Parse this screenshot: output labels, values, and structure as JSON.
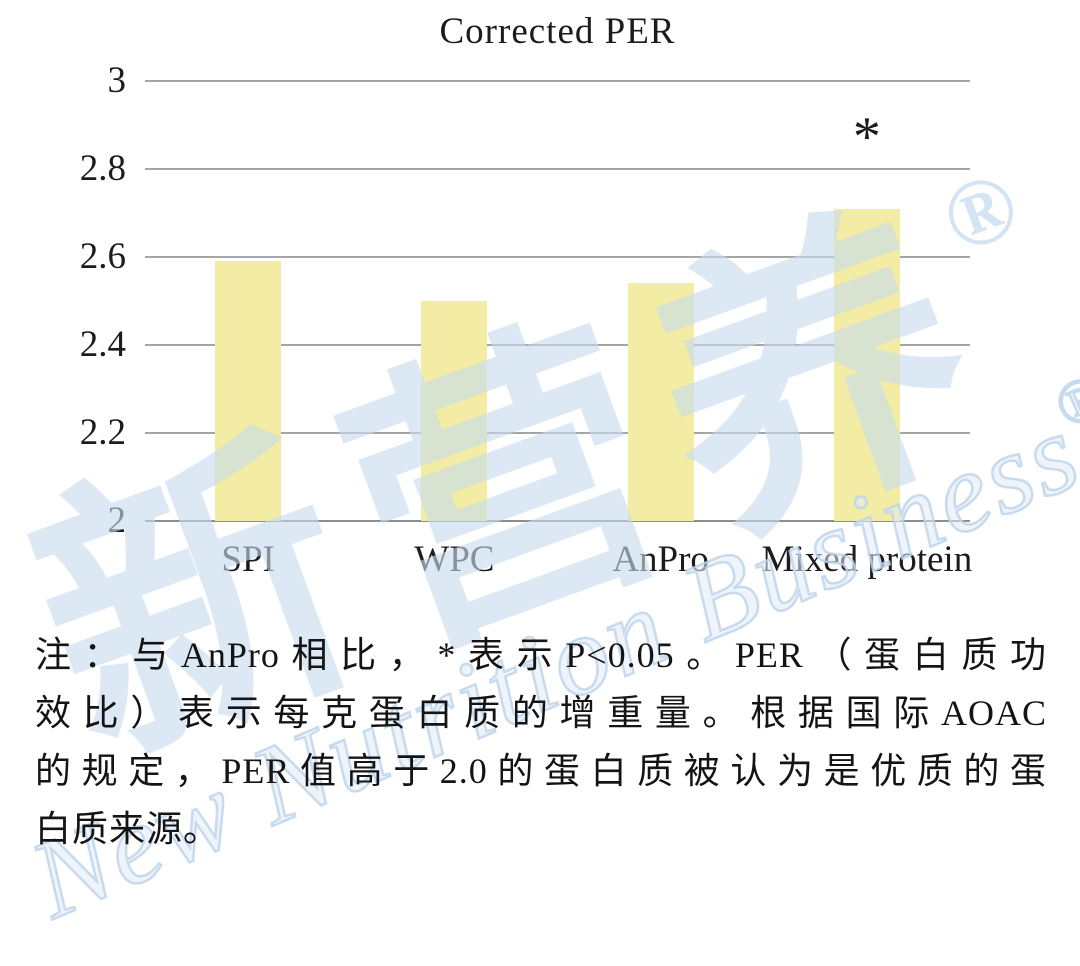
{
  "chart_data": {
    "type": "bar",
    "title": "Corrected PER",
    "categories": [
      "SPI",
      "WPC",
      "AnPro",
      "Mixed protein"
    ],
    "values": [
      2.59,
      2.5,
      2.54,
      2.71
    ],
    "annotations": [
      {
        "category_index": 3,
        "text": "*"
      }
    ],
    "xlabel": "",
    "ylabel": "",
    "ylim": [
      2,
      3
    ],
    "yticks": [
      3,
      2.8,
      2.6,
      2.4,
      2.2,
      2
    ],
    "grid": true,
    "legend": false,
    "bar_color": "#f2eca4",
    "gridline_color": "#a5a5a5",
    "text_color": "#1c1c1c"
  },
  "note": {
    "lines": [
      "注：与AnPro相比，*表示P<0.05。PER（蛋白质功",
      "效比）表示每克蛋白质的增重量。根据国际AOAC",
      "的规定，PER值高于2.0的蛋白质被认为是优质的蛋",
      "白质来源。"
    ]
  },
  "watermark": {
    "cjk_text": "新营养",
    "latin_text": "New Nutrition Business",
    "registered_symbol": "®",
    "color": "#c6dbee"
  }
}
